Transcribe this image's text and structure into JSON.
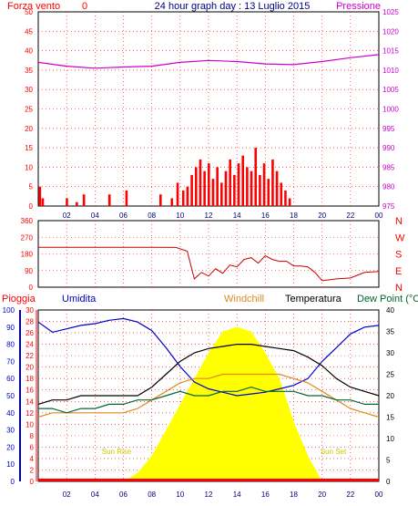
{
  "header": {
    "wind_title": "Forza vento",
    "wind_unit_marker": "0",
    "center_title": "24 hour graph day : 13 Luglio 2015",
    "pressure_title": "Pressione"
  },
  "labels": {
    "pioggia": "Pioggia",
    "umidita": "Umidita",
    "windchill": "Windchill",
    "temperatura": "Temperatura",
    "dewpoint": "Dew Point (°C",
    "sunrise": "Sun Rise",
    "sunset": "Sun Set"
  },
  "colors": {
    "wind": "#ff0000",
    "pressure": "#cc00cc",
    "direction": "#cc0000",
    "humidity": "#0000cc",
    "windchill": "#e08a1e",
    "temperature": "#000000",
    "dewpoint": "#006633",
    "solar": "#ffff00",
    "title": "#000080",
    "grid": "#ff0000"
  },
  "x_ticks": [
    "02",
    "04",
    "06",
    "08",
    "10",
    "12",
    "14",
    "16",
    "18",
    "20",
    "22",
    "00"
  ],
  "chart_data": [
    {
      "type": "bar",
      "name": "wind-pressure",
      "left_ticks": [
        "0",
        "5",
        "10",
        "15",
        "20",
        "25",
        "30",
        "35",
        "40",
        "45",
        "50"
      ],
      "left_range": [
        0,
        50
      ],
      "right_ticks": [
        "975",
        "980",
        "985",
        "990",
        "995",
        "1000",
        "1005",
        "1010",
        "1015",
        "1020",
        "1025"
      ],
      "right_range": [
        975,
        1025
      ],
      "wind_x_hours": [
        0.1,
        0.3,
        2.0,
        2.7,
        3.2,
        5.0,
        6.2,
        8.6,
        9.4,
        9.8,
        10.2,
        10.5,
        10.8,
        11.1,
        11.4,
        11.7,
        12.0,
        12.3,
        12.6,
        12.9,
        13.2,
        13.5,
        13.8,
        14.1,
        14.4,
        14.7,
        15.0,
        15.3,
        15.6,
        15.9,
        16.2,
        16.5,
        16.8,
        17.1,
        17.4,
        17.7
      ],
      "wind_values": [
        5,
        2,
        2,
        1,
        3,
        3,
        4,
        3,
        2,
        6,
        4,
        5,
        8,
        10,
        12,
        9,
        11,
        7,
        10,
        6,
        9,
        12,
        8,
        11,
        13,
        10,
        9,
        15,
        8,
        11,
        7,
        12,
        9,
        6,
        4,
        2
      ],
      "pressure_x_hours": [
        0,
        2,
        4,
        6,
        8,
        10,
        12,
        14,
        16,
        18,
        20,
        22,
        24
      ],
      "pressure_values": [
        1012.0,
        1011.0,
        1010.5,
        1010.8,
        1011.0,
        1012.0,
        1012.5,
        1012.2,
        1011.6,
        1011.4,
        1012.2,
        1013.2,
        1014.0
      ]
    },
    {
      "type": "line",
      "name": "wind-direction",
      "left_ticks": [
        "0",
        "90",
        "180",
        "270",
        "360"
      ],
      "right_labels": [
        "N",
        "W",
        "S",
        "E",
        "N"
      ],
      "range": [
        0,
        360
      ],
      "x_hours": [
        0,
        2,
        4,
        6,
        8,
        9.7,
        10.5,
        11.0,
        11.5,
        12.0,
        12.5,
        13.0,
        13.5,
        14.0,
        14.5,
        15.0,
        15.5,
        16.0,
        16.5,
        17.0,
        17.5,
        18.0,
        18.5,
        19.0,
        19.5,
        20.0,
        21.0,
        22.0,
        23.0,
        24.0
      ],
      "values": [
        216,
        216,
        216,
        216,
        216,
        215,
        195,
        45,
        80,
        60,
        100,
        75,
        120,
        110,
        150,
        160,
        130,
        170,
        150,
        140,
        140,
        115,
        115,
        110,
        80,
        35,
        45,
        50,
        80,
        85
      ]
    },
    {
      "type": "line",
      "name": "temperature-humidity",
      "left_ticks": [
        "0",
        "10",
        "20",
        "30",
        "40",
        "50",
        "60",
        "70",
        "80",
        "90",
        "100"
      ],
      "left_range": [
        0,
        100
      ],
      "mid_ticks": [
        "0",
        "2",
        "4",
        "6",
        "8",
        "10",
        "12",
        "14",
        "16",
        "18",
        "20",
        "22",
        "24",
        "26",
        "28",
        "30"
      ],
      "mid_range": [
        0,
        30
      ],
      "right_ticks": [
        "0",
        "5",
        "10",
        "15",
        "20",
        "25",
        "30",
        "35",
        "40"
      ],
      "right_range": [
        0,
        40
      ],
      "x_hours": [
        0,
        1,
        2,
        3,
        4,
        5,
        6,
        7,
        8,
        9,
        10,
        11,
        12,
        13,
        14,
        15,
        16,
        17,
        18,
        19,
        20,
        21,
        22,
        23,
        24
      ],
      "humidity": [
        93,
        87,
        89,
        91,
        92,
        94,
        95,
        93,
        88,
        78,
        67,
        58,
        54,
        52,
        50,
        51,
        52,
        54,
        56,
        60,
        70,
        78,
        86,
        90,
        91
      ],
      "windchill": [
        15,
        16,
        16,
        16,
        16,
        16,
        16,
        17,
        19,
        21,
        23,
        24,
        24,
        25,
        25,
        25,
        25,
        25,
        24,
        23,
        21,
        19,
        17,
        16,
        15
      ],
      "temperature": [
        18,
        19,
        19,
        20,
        20,
        20,
        20,
        20,
        22,
        25,
        28,
        30,
        31,
        31.5,
        32,
        32,
        31.5,
        31,
        30.5,
        29,
        27,
        24,
        22,
        21,
        20
      ],
      "dewpoint": [
        17,
        17,
        16,
        17,
        17,
        18,
        18,
        19,
        19,
        20,
        21,
        20,
        20,
        21,
        21,
        22,
        21,
        21,
        21,
        20,
        20,
        19,
        19,
        18,
        18
      ],
      "solar_x_hours": [
        6,
        7,
        8,
        9,
        10,
        11,
        12,
        13,
        14,
        15,
        16,
        17,
        18,
        19,
        20
      ],
      "solar": [
        0,
        2,
        6,
        12,
        18,
        24,
        30,
        35,
        36,
        35,
        30,
        24,
        14,
        6,
        0
      ],
      "rain_values": [
        0
      ]
    }
  ]
}
